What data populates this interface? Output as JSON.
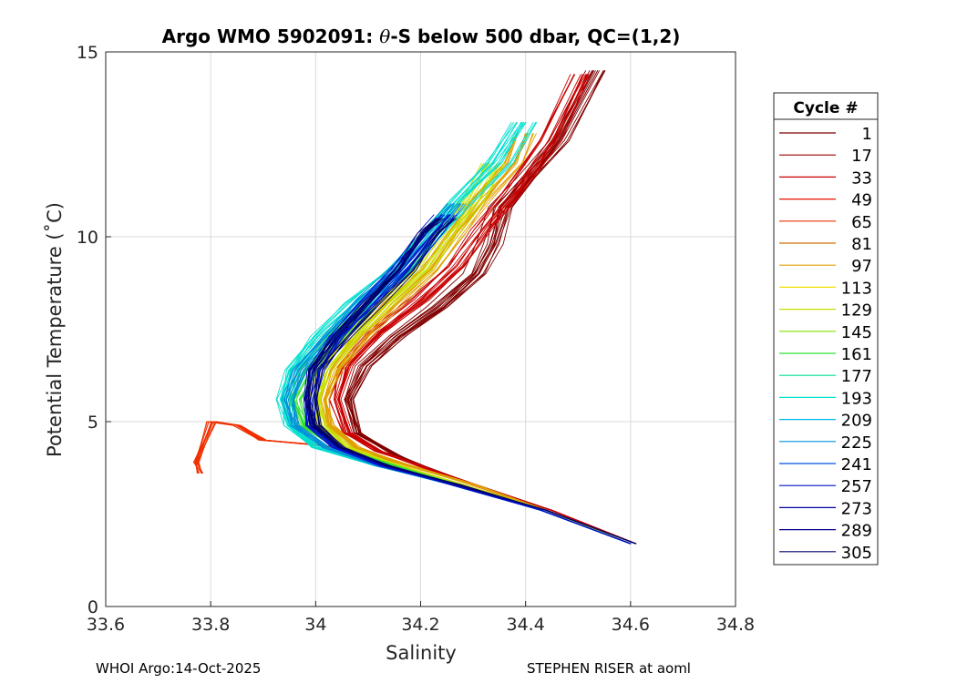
{
  "chart_data": {
    "type": "line",
    "title_prefix": "Argo WMO 5902091: ",
    "title_theta": "θ",
    "title_suffix": "-S below 500 dbar,  QC=(1,2)",
    "xlabel": "Salinity",
    "ylabel": "Potential Temperature (˚C)",
    "xlim": [
      33.6,
      34.8
    ],
    "ylim": [
      0,
      15
    ],
    "x_ticks": [
      33.6,
      33.8,
      34,
      34.2,
      34.4,
      34.6,
      34.8
    ],
    "x_tick_labels": [
      "33.6",
      "33.8",
      "34",
      "34.2",
      "34.4",
      "34.6",
      "34.8"
    ],
    "y_ticks": [
      0,
      5,
      10,
      15
    ],
    "y_tick_labels": [
      "0",
      "5",
      "10",
      "15"
    ],
    "grid": true,
    "legend_title": "Cycle #",
    "legend_placement": "right-outside",
    "series": [
      {
        "name": "1",
        "color": "#800000"
      },
      {
        "name": "17",
        "color": "#a00000"
      },
      {
        "name": "33",
        "color": "#c80000"
      },
      {
        "name": "49",
        "color": "#e81000"
      },
      {
        "name": "65",
        "color": "#f03000"
      },
      {
        "name": "81",
        "color": "#d07000"
      },
      {
        "name": "97",
        "color": "#e0a000"
      },
      {
        "name": "113",
        "color": "#f0e000"
      },
      {
        "name": "129",
        "color": "#c8e000"
      },
      {
        "name": "145",
        "color": "#80e000"
      },
      {
        "name": "161",
        "color": "#30e030"
      },
      {
        "name": "177",
        "color": "#00e090"
      },
      {
        "name": "193",
        "color": "#00e0d0"
      },
      {
        "name": "209",
        "color": "#00b8f0"
      },
      {
        "name": "225",
        "color": "#0090d8"
      },
      {
        "name": "241",
        "color": "#0050e0"
      },
      {
        "name": "257",
        "color": "#0010d0"
      },
      {
        "name": "273",
        "color": "#0000a8"
      },
      {
        "name": "289",
        "color": "#000088"
      },
      {
        "name": "305",
        "color": "#00006c"
      }
    ],
    "representative_profiles": [
      {
        "cycle": "1",
        "color": "#800000",
        "points": [
          [
            34.61,
            1.7
          ],
          [
            34.45,
            2.6
          ],
          [
            34.3,
            3.3
          ],
          [
            34.2,
            3.8
          ],
          [
            34.15,
            4.1
          ],
          [
            34.08,
            4.7
          ],
          [
            34.06,
            5.6
          ],
          [
            34.09,
            6.5
          ],
          [
            34.15,
            7.3
          ],
          [
            34.23,
            8.1
          ],
          [
            34.3,
            9.0
          ],
          [
            34.33,
            9.8
          ],
          [
            34.35,
            10.8
          ],
          [
            34.4,
            11.6
          ],
          [
            34.46,
            12.6
          ],
          [
            34.53,
            14.5
          ]
        ]
      },
      {
        "cycle": "33",
        "color": "#c80000",
        "points": [
          [
            34.61,
            1.7
          ],
          [
            34.45,
            2.6
          ],
          [
            34.3,
            3.3
          ],
          [
            34.2,
            3.8
          ],
          [
            34.12,
            4.2
          ],
          [
            34.06,
            4.7
          ],
          [
            34.04,
            5.6
          ],
          [
            34.06,
            6.5
          ],
          [
            34.12,
            7.4
          ],
          [
            34.2,
            8.3
          ],
          [
            34.27,
            9.2
          ],
          [
            34.32,
            10.2
          ],
          [
            34.38,
            11.2
          ],
          [
            34.45,
            12.6
          ],
          [
            34.51,
            14.4
          ]
        ]
      },
      {
        "cycle": "65",
        "color": "#f03000",
        "points": [
          [
            34.6,
            1.7
          ],
          [
            34.44,
            2.6
          ],
          [
            34.3,
            3.3
          ],
          [
            34.18,
            3.8
          ],
          [
            34.05,
            4.3
          ],
          [
            33.98,
            4.4
          ],
          [
            33.9,
            4.5
          ],
          [
            33.85,
            4.9
          ],
          [
            33.8,
            5.0
          ],
          [
            33.77,
            3.9
          ],
          [
            33.78,
            3.6
          ]
        ]
      },
      {
        "cycle": "97",
        "color": "#e0a000",
        "points": [
          [
            34.6,
            1.7
          ],
          [
            34.44,
            2.6
          ],
          [
            34.3,
            3.3
          ],
          [
            34.18,
            3.8
          ],
          [
            34.08,
            4.3
          ],
          [
            34.03,
            4.9
          ],
          [
            34.02,
            5.6
          ],
          [
            34.04,
            6.4
          ],
          [
            34.09,
            7.3
          ],
          [
            34.15,
            8.2
          ],
          [
            34.22,
            9.1
          ],
          [
            34.27,
            10.1
          ],
          [
            34.32,
            11.0
          ],
          [
            34.38,
            12.0
          ],
          [
            34.4,
            12.8
          ]
        ]
      },
      {
        "cycle": "129",
        "color": "#c8e000",
        "points": [
          [
            34.6,
            1.7
          ],
          [
            34.44,
            2.6
          ],
          [
            34.28,
            3.3
          ],
          [
            34.16,
            3.8
          ],
          [
            34.06,
            4.3
          ],
          [
            34.01,
            4.9
          ],
          [
            34.0,
            5.6
          ],
          [
            34.02,
            6.4
          ],
          [
            34.07,
            7.3
          ],
          [
            34.13,
            8.2
          ],
          [
            34.2,
            9.1
          ],
          [
            34.25,
            10.1
          ],
          [
            34.3,
            11.0
          ],
          [
            34.34,
            12.0
          ]
        ]
      },
      {
        "cycle": "161",
        "color": "#30e030",
        "points": [
          [
            34.6,
            1.7
          ],
          [
            34.43,
            2.6
          ],
          [
            34.27,
            3.3
          ],
          [
            34.15,
            3.8
          ],
          [
            34.04,
            4.3
          ],
          [
            33.98,
            4.9
          ],
          [
            33.96,
            5.6
          ],
          [
            33.99,
            6.4
          ],
          [
            34.04,
            7.3
          ],
          [
            34.1,
            8.1
          ]
        ]
      },
      {
        "cycle": "193",
        "color": "#00e0d0",
        "points": [
          [
            34.6,
            1.7
          ],
          [
            34.43,
            2.6
          ],
          [
            34.26,
            3.3
          ],
          [
            34.12,
            3.8
          ],
          [
            34.0,
            4.3
          ],
          [
            33.95,
            4.9
          ],
          [
            33.94,
            5.6
          ],
          [
            33.96,
            6.4
          ],
          [
            34.01,
            7.3
          ],
          [
            34.08,
            8.2
          ],
          [
            34.16,
            9.1
          ],
          [
            34.22,
            10.1
          ],
          [
            34.28,
            11.0
          ],
          [
            34.35,
            12.0
          ],
          [
            34.4,
            13.1
          ]
        ]
      },
      {
        "cycle": "225",
        "color": "#0090d8",
        "points": [
          [
            34.6,
            1.7
          ],
          [
            34.43,
            2.6
          ],
          [
            34.26,
            3.3
          ],
          [
            34.12,
            3.8
          ],
          [
            34.02,
            4.3
          ],
          [
            33.96,
            4.9
          ],
          [
            33.95,
            5.6
          ],
          [
            33.97,
            6.4
          ],
          [
            34.03,
            7.3
          ],
          [
            34.1,
            8.3
          ],
          [
            34.17,
            9.2
          ],
          [
            34.23,
            10.2
          ],
          [
            34.27,
            10.9
          ]
        ]
      },
      {
        "cycle": "257",
        "color": "#0010d0",
        "points": [
          [
            34.6,
            1.7
          ],
          [
            34.43,
            2.6
          ],
          [
            34.26,
            3.3
          ],
          [
            34.13,
            3.8
          ],
          [
            34.04,
            4.3
          ],
          [
            33.99,
            4.9
          ],
          [
            33.99,
            5.6
          ],
          [
            34.0,
            6.4
          ],
          [
            34.04,
            7.3
          ],
          [
            34.1,
            8.2
          ],
          [
            34.16,
            9.1
          ],
          [
            34.22,
            10.1
          ],
          [
            34.25,
            10.6
          ]
        ]
      },
      {
        "cycle": "305",
        "color": "#00006c",
        "points": [
          [
            34.61,
            1.7
          ],
          [
            34.44,
            2.6
          ],
          [
            34.27,
            3.3
          ],
          [
            34.14,
            3.8
          ],
          [
            34.05,
            4.3
          ],
          [
            34.0,
            4.9
          ],
          [
            33.99,
            5.6
          ],
          [
            34.0,
            6.4
          ],
          [
            34.05,
            7.3
          ],
          [
            34.11,
            8.2
          ],
          [
            34.17,
            9.1
          ],
          [
            34.22,
            10.1
          ],
          [
            34.25,
            10.5
          ]
        ]
      }
    ]
  },
  "footer": {
    "left": "WHOI Argo:14-Oct-2025",
    "right": "STEPHEN RISER at aoml"
  }
}
